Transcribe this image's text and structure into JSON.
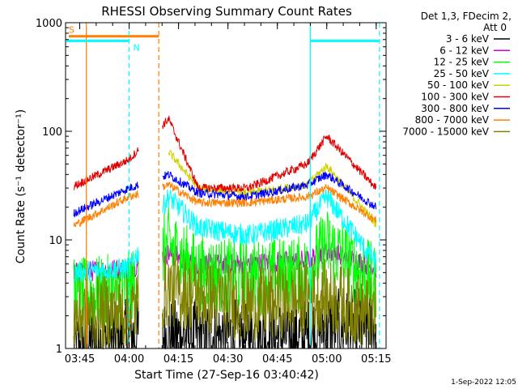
{
  "chart_data": {
    "type": "line",
    "title": "RHESSI Observing Summary Count Rates",
    "xlabel": "Start Time (27-Sep-16 03:40:42)",
    "ylabel": "Count Rate (s⁻¹ detector⁻¹)",
    "y_scale": "log",
    "ylim": [
      1,
      1000
    ],
    "xlim": [
      "03:40:42",
      "05:18:00"
    ],
    "x_ticks": [
      "03:45",
      "04:00",
      "04:15",
      "04:30",
      "04:45",
      "05:00",
      "05:15"
    ],
    "y_ticks": [
      "1",
      "10",
      "100",
      "1000"
    ],
    "legend_header": [
      "Det 1,3, FDecim 2,",
      "Att 0"
    ],
    "legend_position": "right",
    "date_stamp": "1-Sep-2022 12:05",
    "data_gap": [
      "04:03",
      "04:10"
    ],
    "series": [
      {
        "name": "3 - 6 keV",
        "color": "#000000",
        "values": [
          [
            3.7,
            1.0
          ],
          [
            4.0,
            1.3
          ],
          [
            4.9,
            1.3
          ],
          [
            5.0,
            1.6
          ],
          [
            5.25,
            1.6
          ]
        ]
      },
      {
        "name": "6 - 12 keV",
        "color": "#d000d0",
        "values": [
          [
            3.7,
            5.0
          ],
          [
            4.0,
            5.5
          ],
          [
            4.2,
            7.5
          ],
          [
            4.35,
            6.0
          ],
          [
            4.6,
            6.0
          ],
          [
            4.9,
            6.5
          ],
          [
            5.0,
            8.0
          ],
          [
            5.25,
            5.5
          ]
        ]
      },
      {
        "name": "12 - 25 keV",
        "color": "#00ff00",
        "values": [
          [
            3.7,
            3.0
          ],
          [
            4.0,
            3.5
          ],
          [
            4.2,
            9.0
          ],
          [
            4.35,
            5.0
          ],
          [
            4.6,
            4.5
          ],
          [
            4.9,
            5.0
          ],
          [
            5.0,
            9.0
          ],
          [
            5.25,
            4.0
          ]
        ]
      },
      {
        "name": "25 - 50 keV",
        "color": "#00ffff",
        "values": [
          [
            3.7,
            5.0
          ],
          [
            4.0,
            5.5
          ],
          [
            4.2,
            25.0
          ],
          [
            4.35,
            13.0
          ],
          [
            4.6,
            11.0
          ],
          [
            4.9,
            14.0
          ],
          [
            5.0,
            25.0
          ],
          [
            5.25,
            6.0
          ]
        ]
      },
      {
        "name": "50 - 100 keV",
        "color": "#d0d000",
        "values": [
          [
            4.2,
            65.0
          ],
          [
            4.35,
            30.0
          ],
          [
            4.6,
            27.0
          ],
          [
            4.9,
            32.0
          ],
          [
            5.0,
            48.0
          ],
          [
            5.25,
            14.0
          ]
        ]
      },
      {
        "name": "100 - 300 keV",
        "color": "#e00000",
        "values": [
          [
            3.7,
            30.0
          ],
          [
            4.0,
            55.0
          ],
          [
            4.2,
            130.0
          ],
          [
            4.35,
            30.0
          ],
          [
            4.6,
            30.0
          ],
          [
            4.9,
            50.0
          ],
          [
            5.0,
            90.0
          ],
          [
            5.25,
            30.0
          ]
        ]
      },
      {
        "name": "300 - 800 keV",
        "color": "#0000ff",
        "values": [
          [
            3.7,
            17.0
          ],
          [
            4.0,
            30.0
          ],
          [
            4.2,
            40.0
          ],
          [
            4.35,
            27.0
          ],
          [
            4.6,
            25.0
          ],
          [
            4.9,
            32.0
          ],
          [
            5.0,
            40.0
          ],
          [
            5.25,
            20.0
          ]
        ]
      },
      {
        "name": "800 - 7000 keV",
        "color": "#ff8000",
        "values": [
          [
            3.7,
            13.0
          ],
          [
            4.0,
            25.0
          ],
          [
            4.2,
            32.0
          ],
          [
            4.35,
            22.0
          ],
          [
            4.6,
            22.0
          ],
          [
            4.9,
            25.0
          ],
          [
            5.0,
            30.0
          ],
          [
            5.25,
            15.0
          ]
        ]
      },
      {
        "name": "7000 - 15000 keV",
        "color": "#808000",
        "values": [
          [
            3.7,
            2.0
          ],
          [
            4.0,
            2.2
          ],
          [
            4.2,
            3.5
          ],
          [
            4.6,
            2.5
          ],
          [
            5.0,
            3.0
          ],
          [
            5.25,
            2.0
          ]
        ]
      }
    ],
    "annotations": [
      {
        "label": "S",
        "color": "#ff8000",
        "x_range": [
          "03:40:42",
          "04:09"
        ],
        "y": 750
      },
      {
        "label": "N",
        "color": "#00ffff",
        "x_range": [
          "04:00",
          "04:00"
        ],
        "y": 680
      }
    ]
  }
}
